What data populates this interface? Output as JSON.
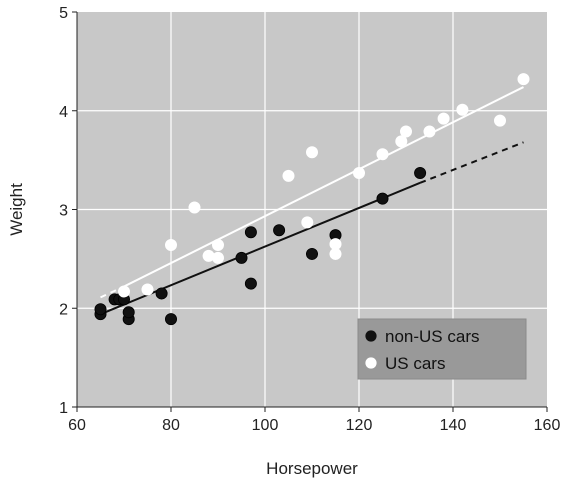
{
  "chart_data": {
    "type": "scatter",
    "title": "",
    "xlabel": "Horsepower",
    "ylabel": "Weight",
    "xlim": [
      60,
      160
    ],
    "ylim": [
      1,
      5
    ],
    "x_ticks": [
      60,
      80,
      100,
      120,
      140,
      160
    ],
    "y_ticks": [
      1,
      2,
      3,
      4,
      5
    ],
    "x_tick_labels": [
      "60",
      "80",
      "100",
      "120",
      "140",
      "160"
    ],
    "y_tick_labels": [
      "1",
      "2",
      "3",
      "4",
      "5"
    ],
    "grid": true,
    "legend_position": "bottom-right",
    "colors": {
      "panel_background": "#c8c8c8",
      "grid": "#ffffff",
      "non_us": "#111111",
      "us": "#ffffff",
      "legend_background": "#999999"
    },
    "series": [
      {
        "name": "non-US cars",
        "marker_color": "#111111",
        "points": [
          {
            "x": 65,
            "y": 1.94
          },
          {
            "x": 65,
            "y": 1.99
          },
          {
            "x": 68,
            "y": 2.09
          },
          {
            "x": 69,
            "y": 2.09
          },
          {
            "x": 70,
            "y": 2.09
          },
          {
            "x": 71,
            "y": 1.89
          },
          {
            "x": 71,
            "y": 1.96
          },
          {
            "x": 78,
            "y": 2.15
          },
          {
            "x": 80,
            "y": 1.89
          },
          {
            "x": 95,
            "y": 2.51
          },
          {
            "x": 97,
            "y": 2.25
          },
          {
            "x": 97,
            "y": 2.77
          },
          {
            "x": 103,
            "y": 2.79
          },
          {
            "x": 110,
            "y": 2.55
          },
          {
            "x": 115,
            "y": 2.74
          },
          {
            "x": 125,
            "y": 3.11
          },
          {
            "x": 133,
            "y": 3.37
          }
        ],
        "fit_line": {
          "x_start": 65,
          "x_end": 133,
          "y_start": 1.94,
          "y_end": 3.27
        },
        "fit_extension": {
          "x_start": 133,
          "x_end": 155,
          "y_start": 3.27,
          "y_end": 3.68
        }
      },
      {
        "name": "US cars",
        "marker_color": "#ffffff",
        "points": [
          {
            "x": 70,
            "y": 2.17
          },
          {
            "x": 75,
            "y": 2.19
          },
          {
            "x": 80,
            "y": 2.64
          },
          {
            "x": 85,
            "y": 3.02
          },
          {
            "x": 88,
            "y": 2.53
          },
          {
            "x": 90,
            "y": 2.51
          },
          {
            "x": 90,
            "y": 2.64
          },
          {
            "x": 105,
            "y": 3.34
          },
          {
            "x": 109,
            "y": 2.87
          },
          {
            "x": 110,
            "y": 3.58
          },
          {
            "x": 115,
            "y": 2.55
          },
          {
            "x": 115,
            "y": 2.65
          },
          {
            "x": 120,
            "y": 3.37
          },
          {
            "x": 125,
            "y": 3.56
          },
          {
            "x": 129,
            "y": 3.69
          },
          {
            "x": 130,
            "y": 3.79
          },
          {
            "x": 135,
            "y": 3.79
          },
          {
            "x": 138,
            "y": 3.92
          },
          {
            "x": 142,
            "y": 4.01
          },
          {
            "x": 150,
            "y": 3.9
          },
          {
            "x": 155,
            "y": 4.32
          }
        ],
        "fit_line": {
          "x_start": 70,
          "x_end": 155,
          "y_start": 2.22,
          "y_end": 4.24
        },
        "fit_extension": {
          "x_start": 65,
          "x_end": 70,
          "y_start": 2.11,
          "y_end": 2.22
        }
      }
    ]
  }
}
